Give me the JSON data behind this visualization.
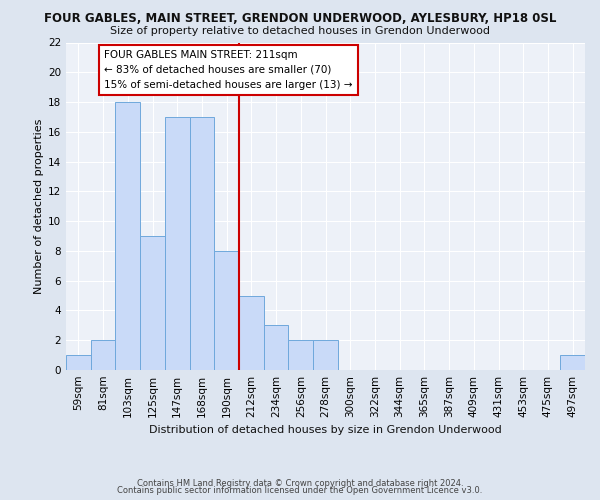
{
  "title": "FOUR GABLES, MAIN STREET, GRENDON UNDERWOOD, AYLESBURY, HP18 0SL",
  "subtitle": "Size of property relative to detached houses in Grendon Underwood",
  "xlabel": "Distribution of detached houses by size in Grendon Underwood",
  "ylabel": "Number of detached properties",
  "footer1": "Contains HM Land Registry data © Crown copyright and database right 2024.",
  "footer2": "Contains public sector information licensed under the Open Government Licence v3.0.",
  "bar_labels": [
    "59sqm",
    "81sqm",
    "103sqm",
    "125sqm",
    "147sqm",
    "168sqm",
    "190sqm",
    "212sqm",
    "234sqm",
    "256sqm",
    "278sqm",
    "300sqm",
    "322sqm",
    "344sqm",
    "365sqm",
    "387sqm",
    "409sqm",
    "431sqm",
    "453sqm",
    "475sqm",
    "497sqm"
  ],
  "bar_values": [
    1,
    2,
    18,
    9,
    17,
    17,
    8,
    5,
    3,
    2,
    2,
    0,
    0,
    0,
    0,
    0,
    0,
    0,
    0,
    0,
    1
  ],
  "bar_color": "#c9daf8",
  "bar_edge_color": "#6fa8dc",
  "ylim": [
    0,
    22
  ],
  "yticks": [
    0,
    2,
    4,
    6,
    8,
    10,
    12,
    14,
    16,
    18,
    20,
    22
  ],
  "vline_x": 7.0,
  "vline_color": "#cc0000",
  "annotation_text": "FOUR GABLES MAIN STREET: 211sqm\n← 83% of detached houses are smaller (70)\n15% of semi-detached houses are larger (13) →",
  "annotation_box_color": "#ffffff",
  "annotation_border_color": "#cc0000",
  "bg_color": "#dde5f0",
  "plot_bg_color": "#edf1f8",
  "grid_color": "#ffffff",
  "title_fontsize": 8.5,
  "subtitle_fontsize": 8,
  "ylabel_fontsize": 8,
  "xlabel_fontsize": 8,
  "tick_fontsize": 7.5,
  "footer_fontsize": 6,
  "annot_fontsize": 7.5
}
